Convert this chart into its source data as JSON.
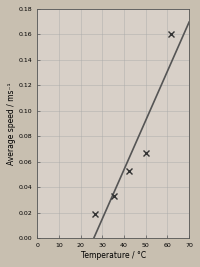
{
  "temperatures": [
    26.5,
    35.5,
    42.5,
    50.0,
    61.5
  ],
  "avg_speeds": [
    0.019,
    0.033,
    0.053,
    0.067,
    0.16
  ],
  "xlim": [
    0,
    70
  ],
  "ylim": [
    0.0,
    0.18
  ],
  "xticks": [
    0,
    10,
    20,
    30,
    40,
    50,
    60,
    70
  ],
  "yticks": [
    0.0,
    0.02,
    0.04,
    0.06,
    0.08,
    0.1,
    0.12,
    0.14,
    0.16,
    0.18
  ],
  "xlabel": "Temperature / °C",
  "ylabel": "Average speed / ms⁻¹",
  "marker_color": "#333333",
  "line_color": "#555555",
  "grid_color": "#aaaaaa",
  "background_color": "#d8d0c8",
  "fig_background": "#c8bfb0",
  "marker_size": 4,
  "line_width": 1.2,
  "ylabel_fontsize": 5.5,
  "xlabel_fontsize": 5.5,
  "tick_fontsize": 4.5
}
